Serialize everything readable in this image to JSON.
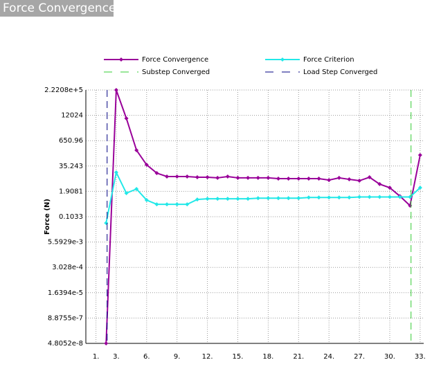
{
  "chart_data": {
    "type": "line",
    "title": "Force Convergence",
    "ylabel": "Force (N)",
    "log_y": true,
    "grid": true,
    "x": [
      2,
      3,
      4,
      5,
      6,
      7,
      8,
      9,
      10,
      11,
      12,
      13,
      14,
      15,
      16,
      17,
      18,
      19,
      20,
      21,
      22,
      23,
      24,
      25,
      26,
      27,
      28,
      29,
      30,
      31,
      32,
      33
    ],
    "series": [
      {
        "name": "Force Convergence",
        "color": "#990099",
        "values": [
          4.8052e-08,
          222080,
          8470,
          217,
          40.6,
          15.6,
          10.5,
          10.5,
          10.5,
          9.7,
          9.7,
          9.0,
          10.5,
          9.0,
          9.0,
          9.0,
          9.0,
          8.3,
          8.3,
          8.3,
          8.3,
          8.3,
          7.0,
          9.0,
          7.6,
          6.5,
          9.7,
          4.4,
          2.9,
          1.1,
          0.37,
          124
        ]
      },
      {
        "name": "Force Criterion",
        "color": "#22e8e8",
        "values": [
          0.05,
          16.9,
          1.55,
          2.5,
          0.7,
          0.43,
          0.43,
          0.43,
          0.43,
          0.75,
          0.81,
          0.81,
          0.81,
          0.81,
          0.81,
          0.87,
          0.87,
          0.87,
          0.87,
          0.87,
          0.94,
          0.94,
          0.94,
          0.94,
          0.94,
          1.0,
          1.0,
          1.0,
          1.0,
          1.0,
          1.0,
          2.9
        ]
      },
      {
        "name": "Substep Converged",
        "color": "#33cc33",
        "x": [
          32.1
        ]
      },
      {
        "name": "Load Step Converged",
        "color": "#000080",
        "x": [
          2.1
        ]
      }
    ],
    "xlim": [
      0,
      33.35
    ],
    "xticks": [
      {
        "value": 1,
        "label": "1."
      },
      {
        "value": 3,
        "label": "3."
      },
      {
        "value": 6,
        "label": "6."
      },
      {
        "value": 9,
        "label": "9."
      },
      {
        "value": 12,
        "label": "12."
      },
      {
        "value": 15,
        "label": "15."
      },
      {
        "value": 18,
        "label": "18."
      },
      {
        "value": 21,
        "label": "21."
      },
      {
        "value": 24,
        "label": "24."
      },
      {
        "value": 27,
        "label": "27."
      },
      {
        "value": 30,
        "label": "30."
      },
      {
        "value": 33,
        "label": "33."
      }
    ],
    "ylim": [
      4.8052e-08,
      222080
    ],
    "yticks": [
      {
        "value": 4.8052e-08,
        "label": "4.8052e-8"
      },
      {
        "value": 8.8755e-07,
        "label": "8.8755e-7"
      },
      {
        "value": 1.6394e-05,
        "label": "1.6394e-5"
      },
      {
        "value": 0.0003028,
        "label": "3.028e-4"
      },
      {
        "value": 0.0055929,
        "label": "5.5929e-3"
      },
      0.1033,
      1.9081,
      35.243,
      650.96,
      12024,
      {
        "value": 222080,
        "label": "2.2208e+5"
      }
    ]
  }
}
